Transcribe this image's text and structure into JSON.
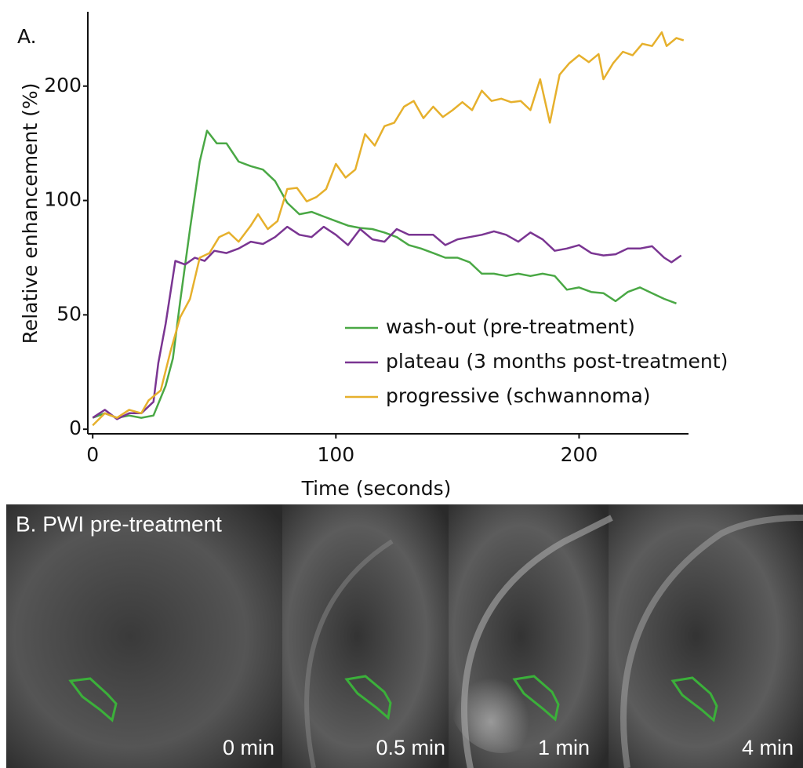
{
  "chart_data": {
    "type": "line",
    "panel_label": "A.",
    "x_label": "Time (seconds)",
    "y_label": "Relative enhancement (%)",
    "xlim": [
      -2,
      245
    ],
    "xticks": [
      0,
      100,
      200
    ],
    "ylim": [
      -2,
      265
    ],
    "yticks": [
      0,
      50,
      100,
      200
    ],
    "y_scale": "piecewise",
    "legend": "lower right",
    "series": [
      {
        "name": "wash-out (pre-treatment)",
        "color": "#4aa845",
        "x": [
          0,
          5,
          10,
          15,
          20,
          25,
          30,
          33,
          36,
          40,
          44,
          47,
          51,
          55,
          60,
          65,
          70,
          75,
          80,
          85,
          90,
          95,
          100,
          105,
          110,
          115,
          120,
          125,
          130,
          135,
          140,
          145,
          150,
          155,
          160,
          165,
          170,
          175,
          180,
          185,
          190,
          195,
          200,
          205,
          210,
          215,
          220,
          225,
          230,
          235,
          240
        ],
        "values": [
          5,
          7,
          5,
          6,
          5,
          6,
          19,
          31,
          56,
          87.5,
          134,
          161,
          150,
          150,
          134,
          130,
          127,
          117,
          99,
          94,
          95,
          93,
          91,
          89,
          88,
          87.5,
          86,
          84,
          80.5,
          79,
          77,
          75,
          75,
          73,
          68,
          68,
          67,
          68,
          67,
          68,
          67,
          61,
          62,
          60,
          59.5,
          56,
          60,
          62,
          59.5,
          57,
          55
        ]
      },
      {
        "name": "plateau (3 months post-treatment)",
        "color": "#7a3592",
        "x": [
          0,
          5,
          10,
          15,
          20,
          25,
          27,
          30,
          34,
          38,
          42,
          46,
          50,
          55,
          60,
          65,
          70,
          75,
          80,
          85,
          90,
          95,
          100,
          105,
          110,
          115,
          120,
          125,
          130,
          135,
          140,
          145,
          150,
          155,
          160,
          165,
          170,
          175,
          180,
          185,
          190,
          195,
          200,
          205,
          210,
          215,
          220,
          225,
          230,
          235,
          238,
          242
        ],
        "values": [
          5,
          8.5,
          4.4,
          7,
          7,
          12,
          29,
          46,
          73.6,
          72,
          75,
          73.6,
          78,
          77,
          79,
          82,
          81,
          84,
          88.5,
          85,
          84,
          88.5,
          85,
          80.5,
          87.5,
          83,
          82,
          87.5,
          85,
          85,
          85,
          80.5,
          83,
          84,
          85,
          86.5,
          85,
          82,
          86,
          83,
          78,
          79,
          80.5,
          77,
          76,
          76.5,
          79,
          79,
          80,
          75,
          73,
          76
        ]
      },
      {
        "name": "progressive (schwannoma)",
        "color": "#e6b02c",
        "x": [
          0,
          5,
          10,
          15,
          20,
          23,
          28,
          32,
          36,
          40,
          44,
          48,
          52,
          56,
          60,
          65,
          68,
          72,
          76,
          80,
          84,
          88,
          92,
          96,
          100,
          104,
          108,
          112,
          116,
          120,
          124,
          128,
          132,
          136,
          140,
          144,
          148,
          152,
          156,
          160,
          164,
          168,
          172,
          176,
          180,
          184,
          188,
          192,
          196,
          200,
          204,
          208,
          210,
          214,
          218,
          222,
          226,
          230,
          234,
          236,
          240,
          243
        ],
        "values": [
          1.7,
          7,
          5,
          8.5,
          7,
          12.6,
          17,
          34,
          49,
          57,
          75,
          77,
          84,
          86,
          82,
          89,
          94,
          87.5,
          91,
          110,
          111,
          99.6,
          103,
          110,
          132,
          120,
          127,
          158,
          148,
          165,
          168,
          182,
          187,
          172,
          182,
          173,
          179,
          186,
          179,
          196,
          187,
          189,
          186,
          187,
          179,
          206,
          168,
          210,
          220,
          227,
          221,
          228,
          206,
          220,
          230,
          227,
          237,
          235,
          247,
          235,
          242,
          240
        ]
      }
    ]
  },
  "panel_b": {
    "title": "B. PWI pre-treatment",
    "frames": [
      "0 min",
      "0.5 min",
      "1 min",
      "4 min"
    ]
  }
}
